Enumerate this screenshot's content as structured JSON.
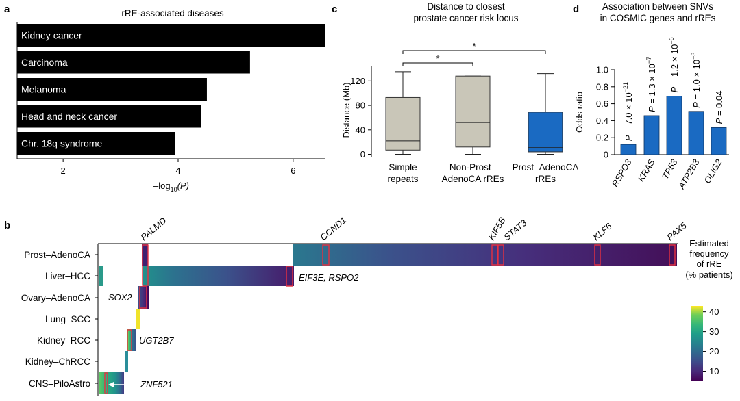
{
  "chart_data": [
    {
      "panel": "a",
      "type": "bar",
      "orientation": "horizontal",
      "title": "rRE-associated diseases",
      "categories": [
        "Kidney cancer",
        "Carcinoma",
        "Melanoma",
        "Head and neck cancer",
        "Chr. 18q syndrome"
      ],
      "values": [
        6.55,
        5.25,
        4.5,
        4.4,
        3.95
      ],
      "xlabel": "–log10(P)",
      "xlabel_base": "–log",
      "xlabel_sub": "10",
      "xlabel_paren": "(P)",
      "xlim": [
        1.2,
        6.55
      ],
      "xticks": [
        "2",
        "4",
        "6"
      ],
      "bar_color": "#000000"
    },
    {
      "panel": "c",
      "type": "box",
      "title_lines": [
        "Distance to closest",
        "prostate cancer risk locus"
      ],
      "categories": [
        {
          "line1": "Simple",
          "line2": "repeats"
        },
        {
          "line1": "Non-Prost–",
          "line2": "AdenoCA rREs"
        },
        {
          "line1": "Prost–AdenoCA",
          "line2": "rREs"
        }
      ],
      "boxes": [
        {
          "whisker_low": 0,
          "q1": 7,
          "median": 22,
          "q3": 93,
          "whisker_high": 135,
          "color": "#c9c6b8"
        },
        {
          "whisker_low": 0,
          "q1": 12,
          "median": 52,
          "q3": 128,
          "whisker_high": 128,
          "color": "#c9c6b8"
        },
        {
          "whisker_low": 0,
          "q1": 4,
          "median": 11,
          "q3": 69,
          "whisker_high": 132,
          "color": "#1a6ac2"
        }
      ],
      "ylabel": "Distance (Mb)",
      "ylim": [
        -5,
        145
      ],
      "yticks": [
        "0",
        "40",
        "80",
        "120"
      ],
      "significance": [
        {
          "from": 0,
          "to": 1,
          "label": "*"
        },
        {
          "from": 0,
          "to": 2,
          "label": "*"
        }
      ]
    },
    {
      "panel": "d",
      "type": "bar",
      "title_lines": [
        "Association between SNVs",
        "in COSMIC genes and rREs"
      ],
      "categories": [
        "RSPO3",
        "KRAS",
        "TP53",
        "ATP2B3",
        "OLIG2"
      ],
      "values": [
        0.12,
        0.46,
        0.69,
        0.51,
        0.32
      ],
      "annotations": [
        {
          "prefix": "P = 7.0 × 10",
          "sup": "−21"
        },
        {
          "prefix": "P = 1.3 × 10",
          "sup": "−7"
        },
        {
          "prefix": "P = 1.2 × 10",
          "sup": "−6"
        },
        {
          "prefix": "P = 1.0 × 10",
          "sup": "−3"
        },
        {
          "prefix": "P = 0.04",
          "sup": ""
        }
      ],
      "ylabel": "Odds ratio",
      "ylim": [
        0,
        1.0
      ],
      "yticks": [
        "0",
        "0.2",
        "0.4",
        "0.6",
        "0.8",
        "1.0"
      ],
      "bar_color": "#1a6ac2"
    },
    {
      "panel": "b",
      "type": "heatmap",
      "rows": [
        "Prost–AdenoCA",
        "Liver–HCC",
        "Ovary–AdenoCA",
        "Lung–SCC",
        "Kidney–RCC",
        "Kidney–ChRCC",
        "CNS–PiloAstro"
      ],
      "genes_top": [
        "PALMD",
        "CCND1",
        "KIF5B",
        "STAT3",
        "KLF6",
        "PAX5"
      ],
      "gene_labels": [
        "EIF3E, RSPO2",
        "SOX2",
        "UGT2B7",
        "ZNF521"
      ],
      "colorbar_title_lines": [
        "Estimated",
        "frequency",
        "of rRE",
        "(% patients)"
      ],
      "colorbar_ticks": [
        "10",
        "20",
        "30",
        "40"
      ],
      "colorbar_range": [
        5,
        43
      ],
      "highlight_color": "#e83040"
    }
  ],
  "panel_labels": {
    "a": "a",
    "b": "b",
    "c": "c",
    "d": "d"
  }
}
